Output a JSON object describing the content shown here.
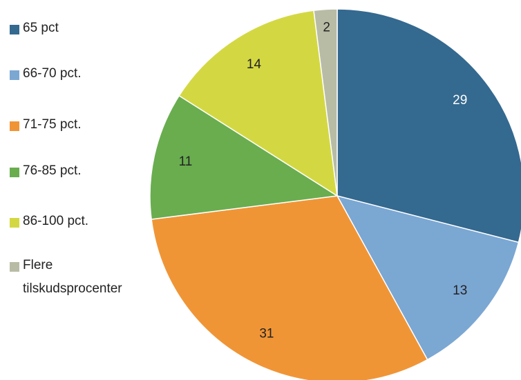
{
  "chart_data": {
    "type": "pie",
    "categories": [
      "65 pct",
      "66-70 pct.",
      "71-75 pct.",
      "76-85 pct.",
      "86-100 pct.",
      "Flere tilskudsprocenter"
    ],
    "values": [
      29,
      13,
      31,
      11,
      14,
      2
    ],
    "colors": [
      "#346990",
      "#7ba7d3",
      "#f09536",
      "#69ad4f",
      "#d3d842",
      "#b9bca5"
    ],
    "legend": "left"
  }
}
